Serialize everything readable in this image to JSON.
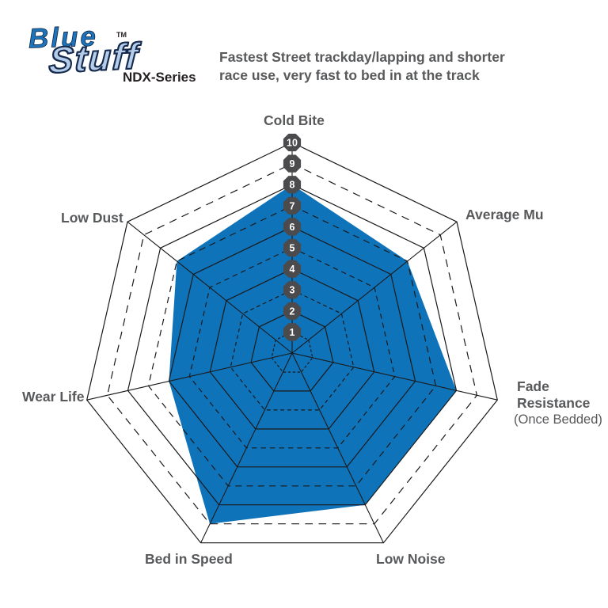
{
  "logo": {
    "brand_word1": "Blue",
    "brand_word2": "Stuff",
    "trademark": "TM",
    "series": "NDX-Series"
  },
  "subtitle": {
    "line1": "Fastest Street trackday/lapping and shorter",
    "line2": "race use, very fast to bed in at the track"
  },
  "chart_data": {
    "type": "radar",
    "subtitle": "Fastest Street trackday/lapping and shorter race use, very fast to bed in at the track",
    "scale": {
      "min": 1,
      "max": 10,
      "badges": [
        1,
        2,
        3,
        4,
        5,
        6,
        7,
        8,
        9,
        10
      ]
    },
    "grid": {
      "rings": 10,
      "solid_rings": "even levels",
      "dashed_rings": "odd levels",
      "spokes": 7
    },
    "axes": [
      {
        "label": "Cold Bite",
        "value": 8
      },
      {
        "label": "Average Mu",
        "value": 7
      },
      {
        "label": "Fade Resistance",
        "sublabel": "(Once Bedded)",
        "value": 8
      },
      {
        "label": "Low Noise",
        "value": 8
      },
      {
        "label": "Bed in Speed",
        "value": 9
      },
      {
        "label": "Wear Life",
        "value": 6
      },
      {
        "label": "Low Dust",
        "value": 7
      }
    ],
    "colors": {
      "fill": "#0f73ba",
      "grid": "#1a1a1a",
      "badge": "#4b4b4d",
      "badge_text": "#ffffff",
      "label": "#58595b",
      "logo_blue": "#1b74bc",
      "logo_light_blue": "#b5cde9"
    }
  }
}
